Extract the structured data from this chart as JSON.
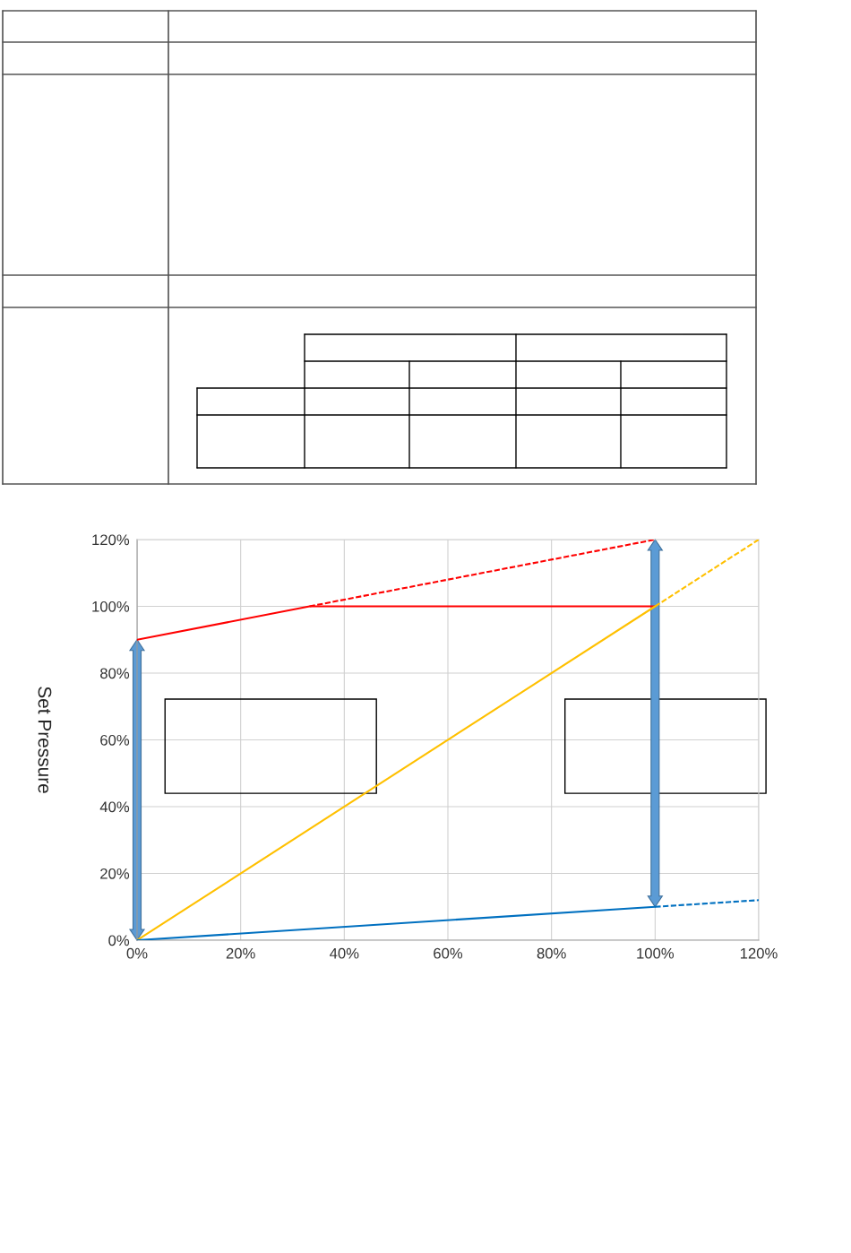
{
  "chart_data": {
    "type": "line",
    "ylabel": "Set Pressure",
    "xlim": [
      0,
      120
    ],
    "ylim": [
      0,
      120
    ],
    "xticks": [
      {
        "value": 0,
        "label": "0%"
      },
      {
        "value": 20,
        "label": "20%"
      },
      {
        "value": 40,
        "label": "40%"
      },
      {
        "value": 60,
        "label": "60%"
      },
      {
        "value": 80,
        "label": "80%"
      },
      {
        "value": 100,
        "label": "100%"
      },
      {
        "value": 120,
        "label": "120%"
      }
    ],
    "yticks": [
      {
        "value": 0,
        "label": "0%"
      },
      {
        "value": 20,
        "label": "20%"
      },
      {
        "value": 40,
        "label": "40%"
      },
      {
        "value": 60,
        "label": "60%"
      },
      {
        "value": 80,
        "label": "80%"
      },
      {
        "value": 100,
        "label": "100%"
      },
      {
        "value": 120,
        "label": "120%"
      }
    ],
    "grid": true,
    "marker": "none",
    "series": [
      {
        "color": "#ff0000",
        "line_style": "solid",
        "x": [
          0,
          33.3,
          100
        ],
        "values": [
          90,
          100,
          100
        ]
      },
      {
        "color": "#ff0000",
        "line_style": "dashed",
        "x": [
          33.3,
          100
        ],
        "values": [
          100,
          120
        ]
      },
      {
        "color": "#ffc000",
        "line_style": "solid",
        "x": [
          0,
          100
        ],
        "values": [
          0,
          100
        ]
      },
      {
        "color": "#ffc000",
        "line_style": "dashed",
        "x": [
          100,
          120
        ],
        "values": [
          100,
          120
        ]
      },
      {
        "color": "#0070c0",
        "line_style": "solid",
        "x": [
          0,
          100
        ],
        "values": [
          0,
          10
        ]
      },
      {
        "color": "#0070c0",
        "line_style": "dashed",
        "x": [
          100,
          120
        ],
        "values": [
          10,
          12
        ]
      }
    ]
  }
}
